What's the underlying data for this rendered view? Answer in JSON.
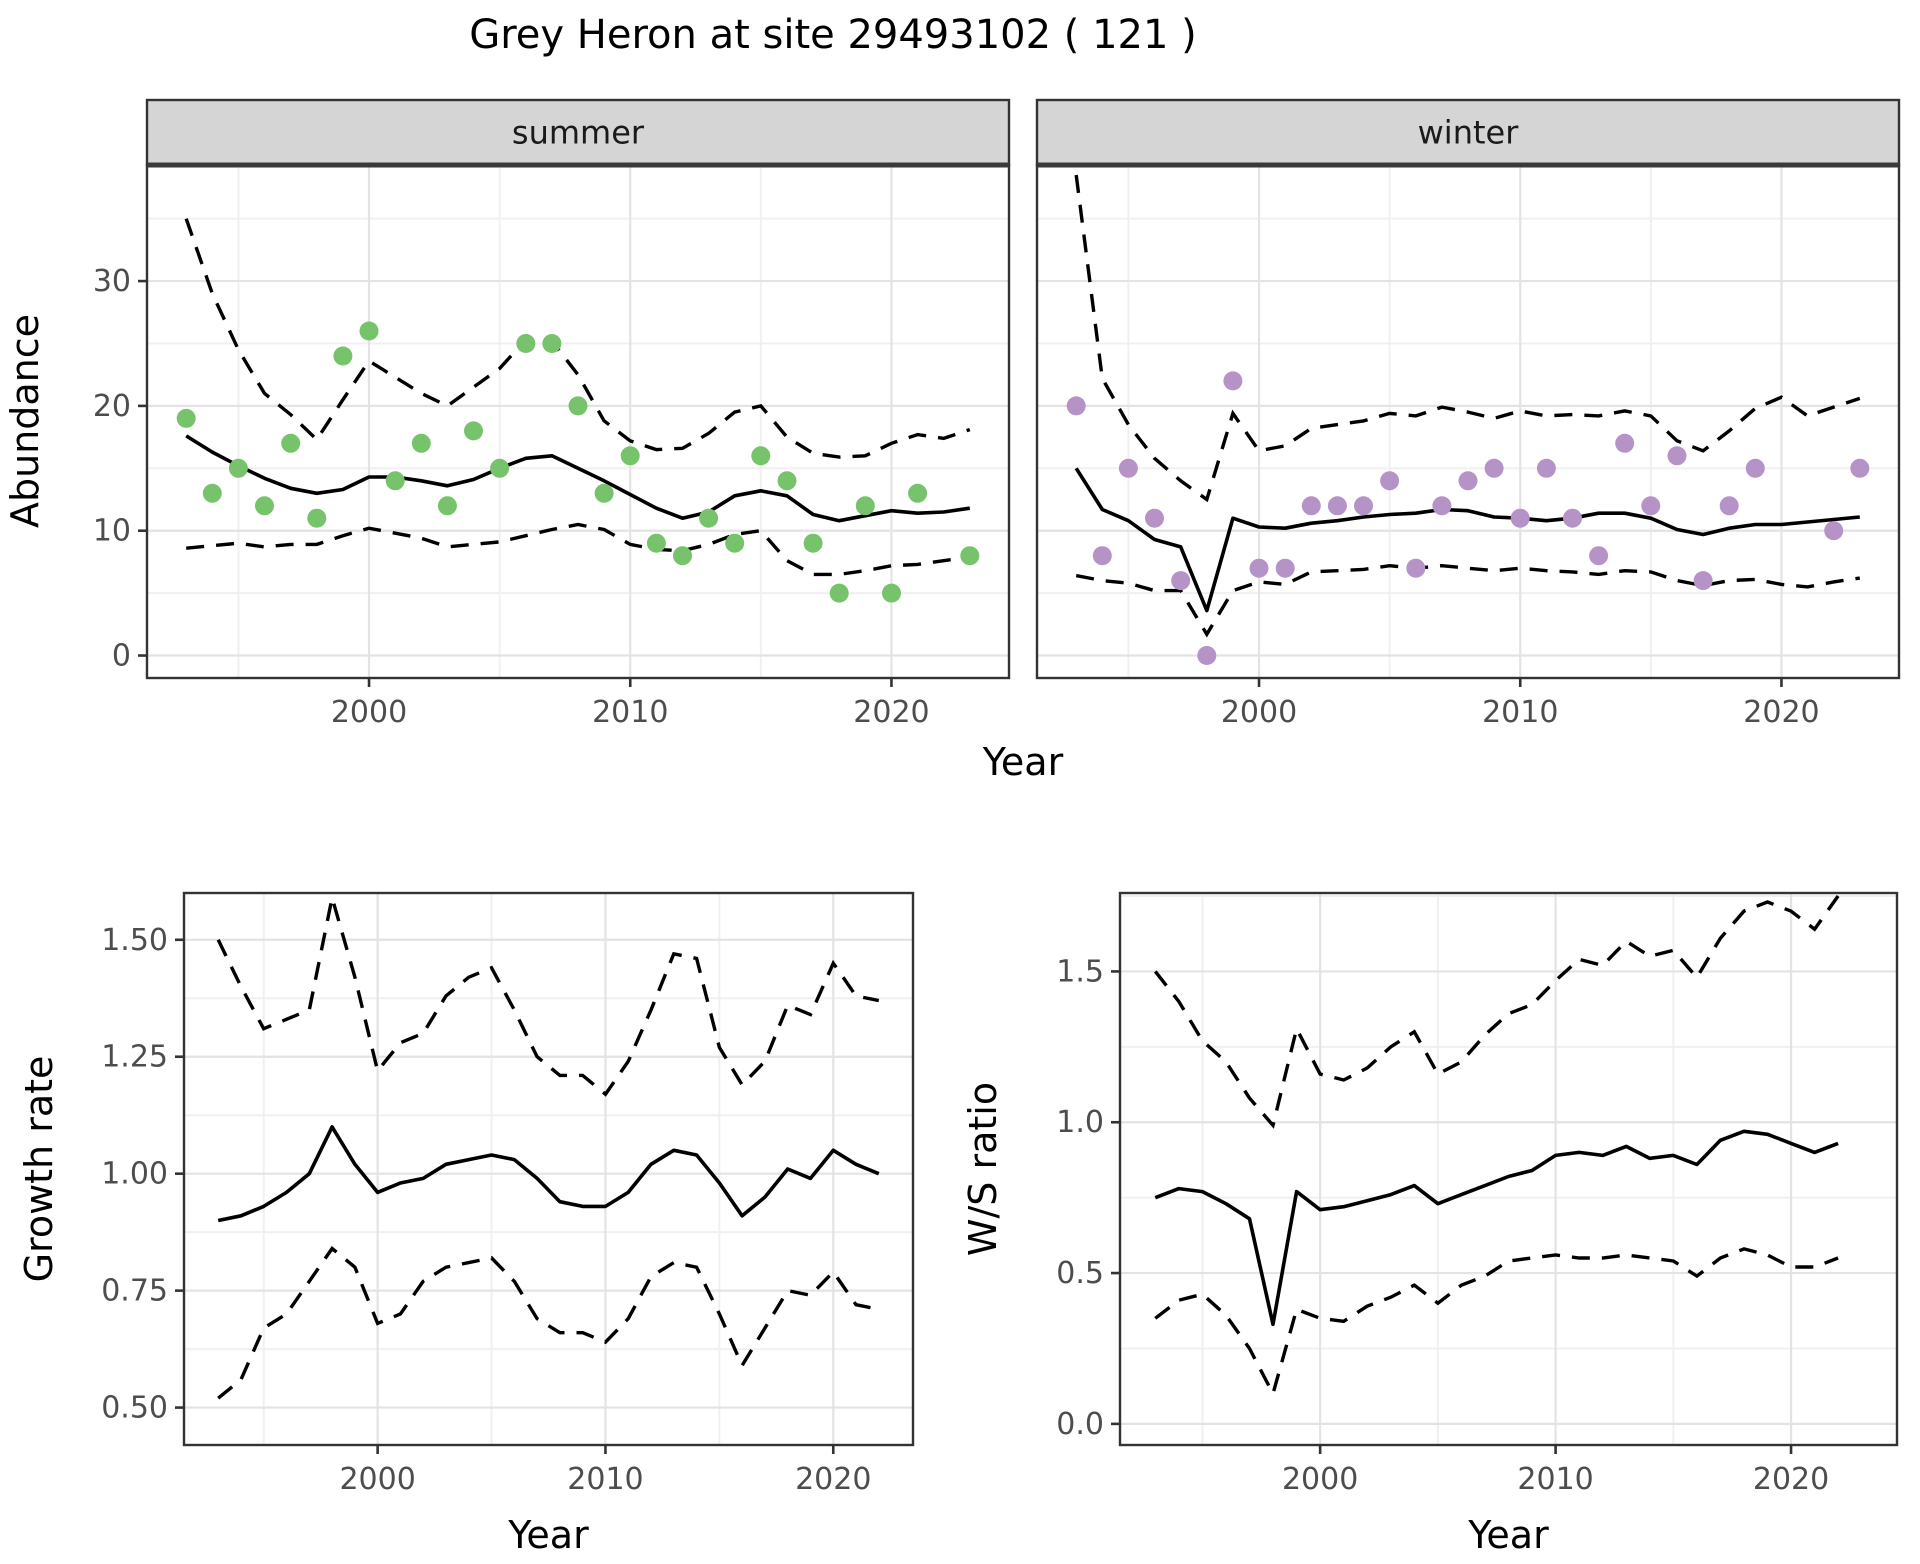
{
  "title": "Grey Heron at site 29493102 ( 121 )",
  "colors": {
    "summer_points": "#76c36c",
    "winter_points": "#b593c7",
    "fit_line": "#000000",
    "band_line": "#000000",
    "strip_bg": "#d5d5d5",
    "panel_border": "#333333",
    "grid_major": "#e3e3e3",
    "grid_minor": "#f0f0f0",
    "tick_text": "#4d4d4d",
    "background": "#ffffff"
  },
  "top_row_xlabel": "Year",
  "chart_data": [
    {
      "id": "abundance-summer",
      "type": "line",
      "facet_label": "summer",
      "xlabel": "Year",
      "ylabel": "Abundance",
      "xlim": [
        1991.5,
        2024.5
      ],
      "ylim": [
        -1.8,
        39.3
      ],
      "x_breaks": [
        2000,
        2010,
        2020
      ],
      "x_tick_labels": [
        "2000",
        "2010",
        "2020"
      ],
      "x_minor": [
        1995,
        2005,
        2015
      ],
      "y_breaks": [
        0,
        10,
        20,
        30
      ],
      "y_tick_labels": [
        "0",
        "10",
        "20",
        "30"
      ],
      "y_minor": [
        5,
        15,
        25,
        35
      ],
      "grid": true,
      "legend": "none",
      "years": [
        1993,
        1994,
        1995,
        1996,
        1997,
        1998,
        1999,
        2000,
        2001,
        2002,
        2003,
        2004,
        2005,
        2006,
        2007,
        2008,
        2009,
        2010,
        2011,
        2012,
        2013,
        2014,
        2015,
        2016,
        2017,
        2018,
        2019,
        2020,
        2021,
        2022,
        2023
      ],
      "points": [
        19,
        13,
        15,
        12,
        17,
        11,
        24,
        26,
        14,
        17,
        12,
        18,
        15,
        25,
        25,
        20,
        13,
        16,
        9,
        8,
        11,
        9,
        16,
        14,
        9,
        5,
        12,
        5,
        13,
        null,
        8
      ],
      "fit": [
        17.6,
        16.3,
        15.2,
        14.2,
        13.4,
        13.0,
        13.3,
        14.3,
        14.3,
        14.0,
        13.6,
        14.1,
        15.0,
        15.8,
        16.0,
        15.0,
        14.0,
        12.9,
        11.8,
        11.0,
        11.5,
        12.8,
        13.2,
        12.8,
        11.3,
        10.8,
        11.2,
        11.6,
        11.4,
        11.5,
        11.8
      ],
      "upper": [
        35.0,
        29.0,
        24.5,
        21.0,
        19.3,
        17.3,
        20.5,
        23.6,
        22.3,
        21.0,
        20.0,
        21.5,
        23.0,
        25.3,
        25.2,
        22.5,
        18.8,
        17.2,
        16.5,
        16.6,
        17.8,
        19.5,
        20.0,
        17.5,
        16.2,
        15.9,
        16.0,
        17.0,
        17.7,
        17.4,
        18.1
      ],
      "lower": [
        8.6,
        8.8,
        9.0,
        8.7,
        8.9,
        8.9,
        9.6,
        10.2,
        9.8,
        9.4,
        8.7,
        8.9,
        9.1,
        9.6,
        10.1,
        10.5,
        10.1,
        8.9,
        8.5,
        8.4,
        8.9,
        9.7,
        10.0,
        7.6,
        6.5,
        6.5,
        6.8,
        7.2,
        7.3,
        7.6,
        7.9
      ]
    },
    {
      "id": "abundance-winter",
      "type": "line",
      "facet_label": "winter",
      "xlabel": "Year",
      "ylabel": "Abundance",
      "xlim": [
        1991.5,
        2024.5
      ],
      "ylim": [
        -1.8,
        39.3
      ],
      "x_breaks": [
        2000,
        2010,
        2020
      ],
      "x_tick_labels": [
        "2000",
        "2010",
        "2020"
      ],
      "x_minor": [
        1995,
        2005,
        2015
      ],
      "y_breaks": [
        0,
        10,
        20,
        30
      ],
      "y_tick_labels": [
        "0",
        "10",
        "20",
        "30"
      ],
      "y_minor": [
        5,
        15,
        25,
        35
      ],
      "grid": true,
      "legend": "none",
      "years": [
        1993,
        1994,
        1995,
        1996,
        1997,
        1998,
        1999,
        2000,
        2001,
        2002,
        2003,
        2004,
        2005,
        2006,
        2007,
        2008,
        2009,
        2010,
        2011,
        2012,
        2013,
        2014,
        2015,
        2016,
        2017,
        2018,
        2019,
        2020,
        2021,
        2022,
        2023
      ],
      "points": [
        20,
        8,
        15,
        11,
        6,
        0,
        22,
        7,
        7,
        12,
        12,
        12,
        14,
        7,
        12,
        14,
        15,
        11,
        15,
        11,
        8,
        17,
        12,
        16,
        6,
        12,
        15,
        null,
        null,
        10,
        15
      ],
      "fit": [
        15.0,
        11.7,
        10.8,
        9.3,
        8.7,
        3.6,
        11.0,
        10.3,
        10.2,
        10.6,
        10.8,
        11.1,
        11.3,
        11.4,
        11.7,
        11.6,
        11.1,
        11.0,
        10.8,
        11.0,
        11.4,
        11.4,
        11.0,
        10.1,
        9.7,
        10.2,
        10.5,
        10.5,
        10.7,
        10.9,
        11.1
      ],
      "upper": [
        38.5,
        22.2,
        18.5,
        15.8,
        14.0,
        12.5,
        19.4,
        16.4,
        16.8,
        18.2,
        18.5,
        18.8,
        19.4,
        19.2,
        19.9,
        19.5,
        19.0,
        19.6,
        19.2,
        19.3,
        19.2,
        19.6,
        19.2,
        17.2,
        16.4,
        18.0,
        19.8,
        20.7,
        19.2,
        19.9,
        20.6
      ],
      "lower": [
        6.4,
        6.0,
        5.8,
        5.2,
        5.2,
        1.7,
        5.2,
        5.9,
        5.7,
        6.7,
        6.8,
        6.9,
        7.2,
        7.0,
        7.2,
        7.0,
        6.8,
        7.0,
        6.8,
        6.7,
        6.5,
        6.8,
        6.7,
        6.0,
        5.6,
        6.0,
        6.1,
        5.7,
        5.5,
        5.9,
        6.2
      ]
    },
    {
      "id": "growth-rate",
      "type": "line",
      "facet_label": "",
      "xlabel": "Year",
      "ylabel": "Growth rate",
      "xlim": [
        1991.5,
        2023.5
      ],
      "ylim": [
        0.42,
        1.6
      ],
      "x_breaks": [
        2000,
        2010,
        2020
      ],
      "x_tick_labels": [
        "2000",
        "2010",
        "2020"
      ],
      "x_minor": [
        1995,
        2005,
        2015
      ],
      "y_breaks": [
        0.5,
        0.75,
        1.0,
        1.25,
        1.5
      ],
      "y_tick_labels": [
        "0.50",
        "0.75",
        "1.00",
        "1.25",
        "1.50"
      ],
      "y_minor": [
        0.625,
        0.875,
        1.125,
        1.375
      ],
      "grid": true,
      "legend": "none",
      "years": [
        1993,
        1994,
        1995,
        1996,
        1997,
        1998,
        1999,
        2000,
        2001,
        2002,
        2003,
        2004,
        2005,
        2006,
        2007,
        2008,
        2009,
        2010,
        2011,
        2012,
        2013,
        2014,
        2015,
        2016,
        2017,
        2018,
        2019,
        2020,
        2021,
        2022
      ],
      "points": null,
      "fit": [
        0.9,
        0.91,
        0.93,
        0.96,
        1.0,
        1.1,
        1.02,
        0.96,
        0.98,
        0.99,
        1.02,
        1.03,
        1.04,
        1.03,
        0.99,
        0.94,
        0.93,
        0.93,
        0.96,
        1.02,
        1.05,
        1.04,
        0.98,
        0.91,
        0.95,
        1.01,
        0.99,
        1.05,
        1.02,
        1.0
      ],
      "upper": [
        1.5,
        1.4,
        1.31,
        1.33,
        1.35,
        1.59,
        1.42,
        1.22,
        1.28,
        1.3,
        1.38,
        1.42,
        1.44,
        1.35,
        1.25,
        1.21,
        1.21,
        1.17,
        1.24,
        1.35,
        1.47,
        1.46,
        1.27,
        1.19,
        1.24,
        1.36,
        1.34,
        1.45,
        1.38,
        1.37
      ],
      "lower": [
        0.52,
        0.56,
        0.67,
        0.7,
        0.77,
        0.84,
        0.8,
        0.68,
        0.7,
        0.77,
        0.8,
        0.81,
        0.82,
        0.77,
        0.69,
        0.66,
        0.66,
        0.64,
        0.69,
        0.78,
        0.81,
        0.8,
        0.7,
        0.59,
        0.67,
        0.75,
        0.74,
        0.79,
        0.72,
        0.71
      ]
    },
    {
      "id": "ws-ratio",
      "type": "line",
      "facet_label": "",
      "xlabel": "Year",
      "ylabel": "W/S ratio",
      "xlim": [
        1991.5,
        2024.5
      ],
      "ylim": [
        -0.07,
        1.76
      ],
      "x_breaks": [
        2000,
        2010,
        2020
      ],
      "x_tick_labels": [
        "2000",
        "2010",
        "2020"
      ],
      "x_minor": [
        1995,
        2005,
        2015
      ],
      "y_breaks": [
        0.0,
        0.5,
        1.0,
        1.5
      ],
      "y_tick_labels": [
        "0.0",
        "0.5",
        "1.0",
        "1.5"
      ],
      "y_minor": [
        0.25,
        0.75,
        1.25,
        1.75
      ],
      "grid": true,
      "legend": "none",
      "years": [
        1993,
        1994,
        1995,
        1996,
        1997,
        1998,
        1999,
        2000,
        2001,
        2002,
        2003,
        2004,
        2005,
        2006,
        2007,
        2008,
        2009,
        2010,
        2011,
        2012,
        2013,
        2014,
        2015,
        2016,
        2017,
        2018,
        2019,
        2020,
        2021,
        2022
      ],
      "points": null,
      "fit": [
        0.75,
        0.78,
        0.77,
        0.73,
        0.68,
        0.33,
        0.77,
        0.71,
        0.72,
        0.74,
        0.76,
        0.79,
        0.73,
        0.76,
        0.79,
        0.82,
        0.84,
        0.89,
        0.9,
        0.89,
        0.92,
        0.88,
        0.89,
        0.86,
        0.94,
        0.97,
        0.96,
        0.93,
        0.9,
        0.93
      ],
      "upper": [
        1.5,
        1.4,
        1.27,
        1.2,
        1.08,
        0.99,
        1.31,
        1.16,
        1.14,
        1.18,
        1.25,
        1.3,
        1.16,
        1.2,
        1.29,
        1.36,
        1.39,
        1.47,
        1.54,
        1.52,
        1.6,
        1.55,
        1.57,
        1.48,
        1.61,
        1.7,
        1.73,
        1.7,
        1.64,
        1.75
      ],
      "lower": [
        0.35,
        0.41,
        0.43,
        0.36,
        0.25,
        0.1,
        0.38,
        0.35,
        0.34,
        0.39,
        0.42,
        0.46,
        0.4,
        0.46,
        0.49,
        0.54,
        0.55,
        0.56,
        0.55,
        0.55,
        0.56,
        0.55,
        0.54,
        0.49,
        0.55,
        0.58,
        0.56,
        0.52,
        0.52,
        0.55
      ]
    }
  ]
}
